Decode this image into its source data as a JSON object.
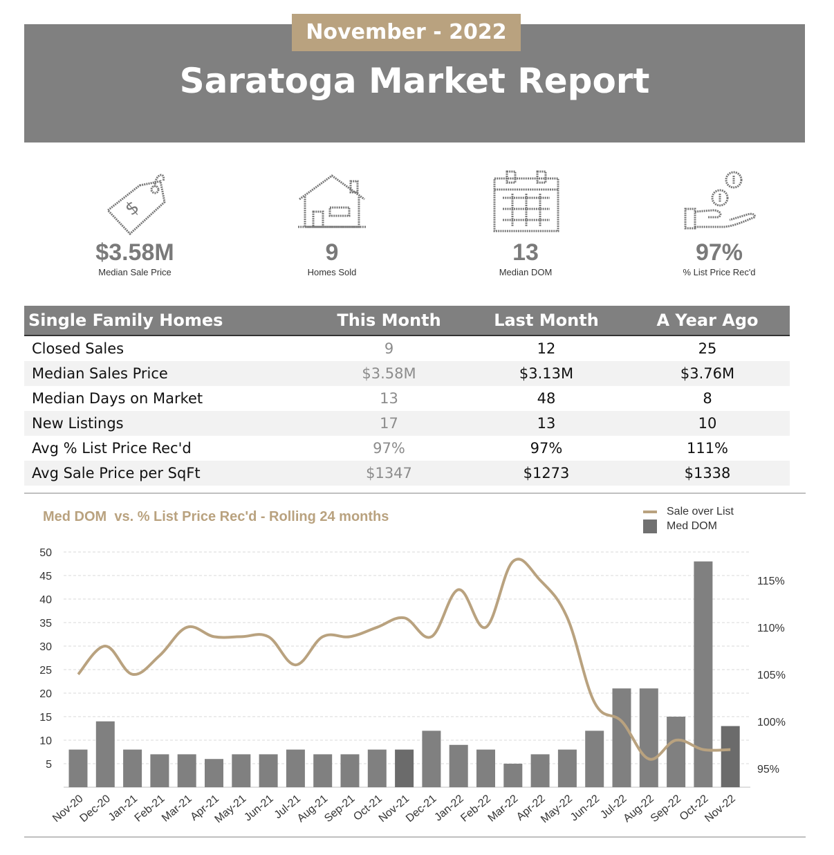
{
  "header": {
    "period": "November - 2022",
    "title": "Saratoga Market Report"
  },
  "stats": [
    {
      "icon": "price-tag-icon",
      "value": "$3.58M",
      "label": "Median Sale Price"
    },
    {
      "icon": "house-icon",
      "value": "9",
      "label": "Homes Sold"
    },
    {
      "icon": "calendar-icon",
      "value": "13",
      "label": "Median DOM"
    },
    {
      "icon": "hand-coins-icon",
      "value": "97%",
      "label": "% List Price Rec'd"
    }
  ],
  "table": {
    "headers": [
      "Single Family Homes",
      "This Month",
      "Last Month",
      "A Year Ago"
    ],
    "rows": [
      [
        "Closed Sales",
        "9",
        "12",
        "25"
      ],
      [
        "Median Sales Price",
        "$3.58M",
        "$3.13M",
        "$3.76M"
      ],
      [
        "Median Days on Market",
        "13",
        "48",
        "8"
      ],
      [
        "New Listings",
        "17",
        "13",
        "10"
      ],
      [
        "Avg % List Price Rec'd",
        "97%",
        "97%",
        "111%"
      ],
      [
        "Avg Sale Price per SqFt",
        "$1347",
        "$1273",
        "$1338"
      ]
    ]
  },
  "colors": {
    "accent": "#B9A27F",
    "bar": "#808080",
    "bar_dark": "#6b6b6b",
    "banner": "#808080"
  },
  "chart_data": {
    "type": "bar",
    "title": "Med DOM  vs. % List Price Rec'd - Rolling 24 months",
    "legend": [
      "Sale over List",
      "Med DOM"
    ],
    "legend_position": "top-right",
    "categories": [
      "Nov-20",
      "Dec-20",
      "Jan-21",
      "Feb-21",
      "Mar-21",
      "Apr-21",
      "May-21",
      "Jun-21",
      "Jul-21",
      "Aug-21",
      "Sep-21",
      "Oct-21",
      "Nov-21",
      "Dec-21",
      "Jan-22",
      "Feb-22",
      "Mar-22",
      "Apr-22",
      "May-22",
      "Jun-22",
      "Jul-22",
      "Aug-22",
      "Sep-22",
      "Oct-22",
      "Nov-22"
    ],
    "series": [
      {
        "name": "Med DOM",
        "type": "bar",
        "axis": "left",
        "values": [
          8,
          14,
          8,
          7,
          7,
          6,
          7,
          7,
          8,
          7,
          7,
          8,
          8,
          12,
          9,
          8,
          5,
          7,
          8,
          12,
          21,
          21,
          15,
          48,
          13
        ]
      },
      {
        "name": "Sale over List",
        "type": "line",
        "axis": "right",
        "values": [
          105,
          108,
          105,
          107,
          110,
          109,
          109,
          109,
          106,
          109,
          109,
          110,
          111,
          109,
          114,
          110,
          117,
          115,
          111,
          102,
          100,
          96,
          98,
          97,
          97
        ]
      }
    ],
    "y_left": {
      "min": 0,
      "max": 50,
      "ticks": [
        5,
        10,
        15,
        20,
        25,
        30,
        35,
        40,
        45,
        50
      ]
    },
    "y_right": {
      "min": 93,
      "max": 118,
      "ticks": [
        "95%",
        "100%",
        "105%",
        "110%",
        "115%"
      ],
      "tick_values": [
        95,
        100,
        105,
        110,
        115
      ]
    },
    "grid": true
  }
}
